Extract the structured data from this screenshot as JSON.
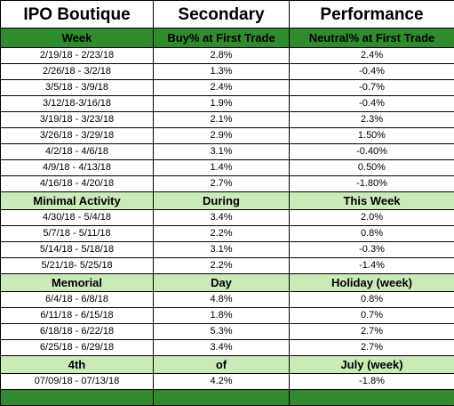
{
  "title_row": [
    "IPO Boutique",
    "Secondary",
    "Performance"
  ],
  "header_row": [
    "Week",
    "Buy% at First Trade",
    "Neutral% at First Trade"
  ],
  "rows": [
    {
      "type": "data",
      "cells": [
        "2/19/18 - 2/23/18",
        "2.8%",
        "2.4%"
      ]
    },
    {
      "type": "data",
      "cells": [
        "2/26/18 - 3/2/18",
        "1.3%",
        "-0.4%"
      ]
    },
    {
      "type": "data",
      "cells": [
        "3/5/18 - 3/9/18",
        "2.4%",
        "-0.7%"
      ]
    },
    {
      "type": "data",
      "cells": [
        "3/12/18-3/16/18",
        "1.9%",
        "-0.4%"
      ]
    },
    {
      "type": "data",
      "cells": [
        "3/19/18 - 3/23/18",
        "2.1%",
        "2.3%"
      ]
    },
    {
      "type": "data",
      "cells": [
        "3/26/18 - 3/29/18",
        "2.9%",
        "1.50%"
      ]
    },
    {
      "type": "data",
      "cells": [
        "4/2/18 - 4/6/18",
        "3.1%",
        "-0.40%"
      ]
    },
    {
      "type": "data",
      "cells": [
        "4/9/18 - 4/13/18",
        "1.4%",
        "0.50%"
      ]
    },
    {
      "type": "data",
      "cells": [
        "4/16/18 - 4/20/18",
        "2.7%",
        "-1.80%"
      ]
    },
    {
      "type": "section",
      "cells": [
        "Minimal Activity",
        "During",
        "This Week"
      ]
    },
    {
      "type": "data",
      "cells": [
        "4/30/18 - 5/4/18",
        "3.4%",
        "2.0%"
      ]
    },
    {
      "type": "data",
      "cells": [
        "5/7/18 - 5/11/18",
        "2.2%",
        "0.8%"
      ]
    },
    {
      "type": "data",
      "cells": [
        "5/14/18 - 5/18/18",
        "3.1%",
        "-0.3%"
      ]
    },
    {
      "type": "data",
      "cells": [
        "5/21/18- 5/25/18",
        "2.2%",
        "-1.4%"
      ]
    },
    {
      "type": "section",
      "cells": [
        "Memorial",
        "Day",
        "Holiday (week)"
      ]
    },
    {
      "type": "data",
      "cells": [
        "6/4/18 - 6/8/18",
        "4.8%",
        "0.8%"
      ]
    },
    {
      "type": "data",
      "cells": [
        "6/11/18 - 6/15/18",
        "1.8%",
        "0.7%"
      ]
    },
    {
      "type": "data",
      "cells": [
        "6/18/18 - 6/22/18",
        "5.3%",
        "2.7%"
      ]
    },
    {
      "type": "data",
      "cells": [
        "6/25/18 - 6/29/18",
        "3.4%",
        "2.7%"
      ]
    },
    {
      "type": "section",
      "cells": [
        "4th",
        "of",
        "July (week)"
      ]
    },
    {
      "type": "data",
      "cells": [
        "07/09/18 - 07/13/18",
        "4.2%",
        "-1.8%"
      ]
    },
    {
      "type": "footer",
      "cells": [
        "",
        "",
        ""
      ]
    }
  ],
  "colors": {
    "header_green": "#2e8b2e",
    "section_light_green": "#c8ebb8",
    "border": "#000000"
  }
}
